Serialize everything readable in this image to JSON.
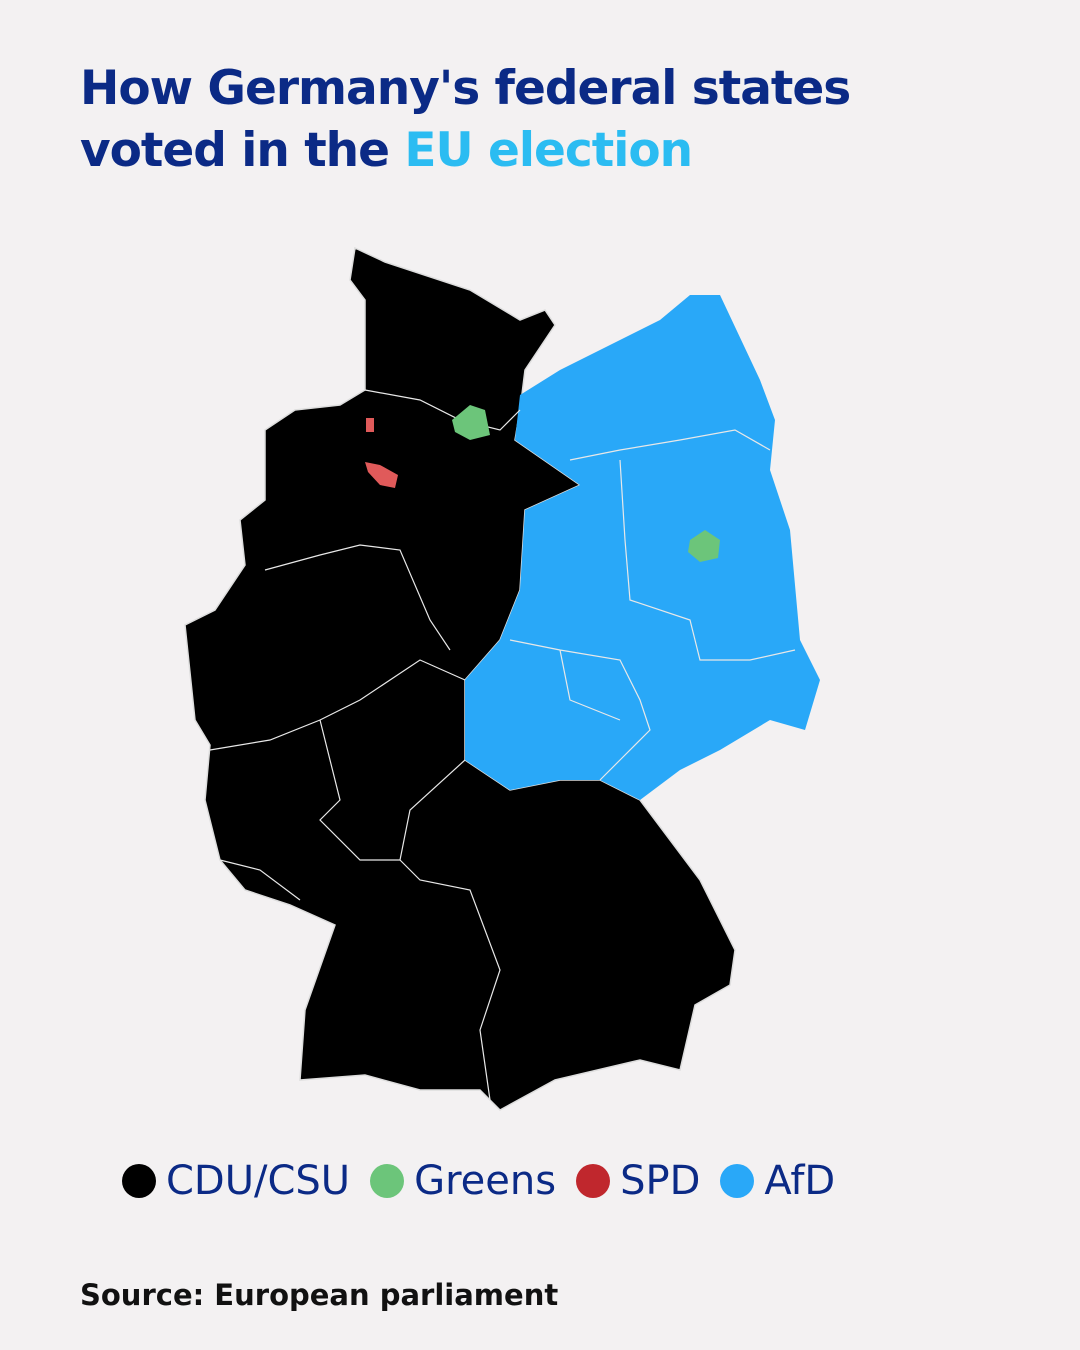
{
  "header": {
    "title": "How Germany's federal states voted in the",
    "highlight": "EU election"
  },
  "legend": {
    "items": [
      {
        "label": "CDU/CSU",
        "color": "#000000"
      },
      {
        "label": "Greens",
        "color": "#6cc57a"
      },
      {
        "label": "SPD",
        "color": "#c0272d"
      },
      {
        "label": "AfD",
        "color": "#29a8f8"
      }
    ]
  },
  "footer": {
    "source": "Source: European parliament"
  }
}
